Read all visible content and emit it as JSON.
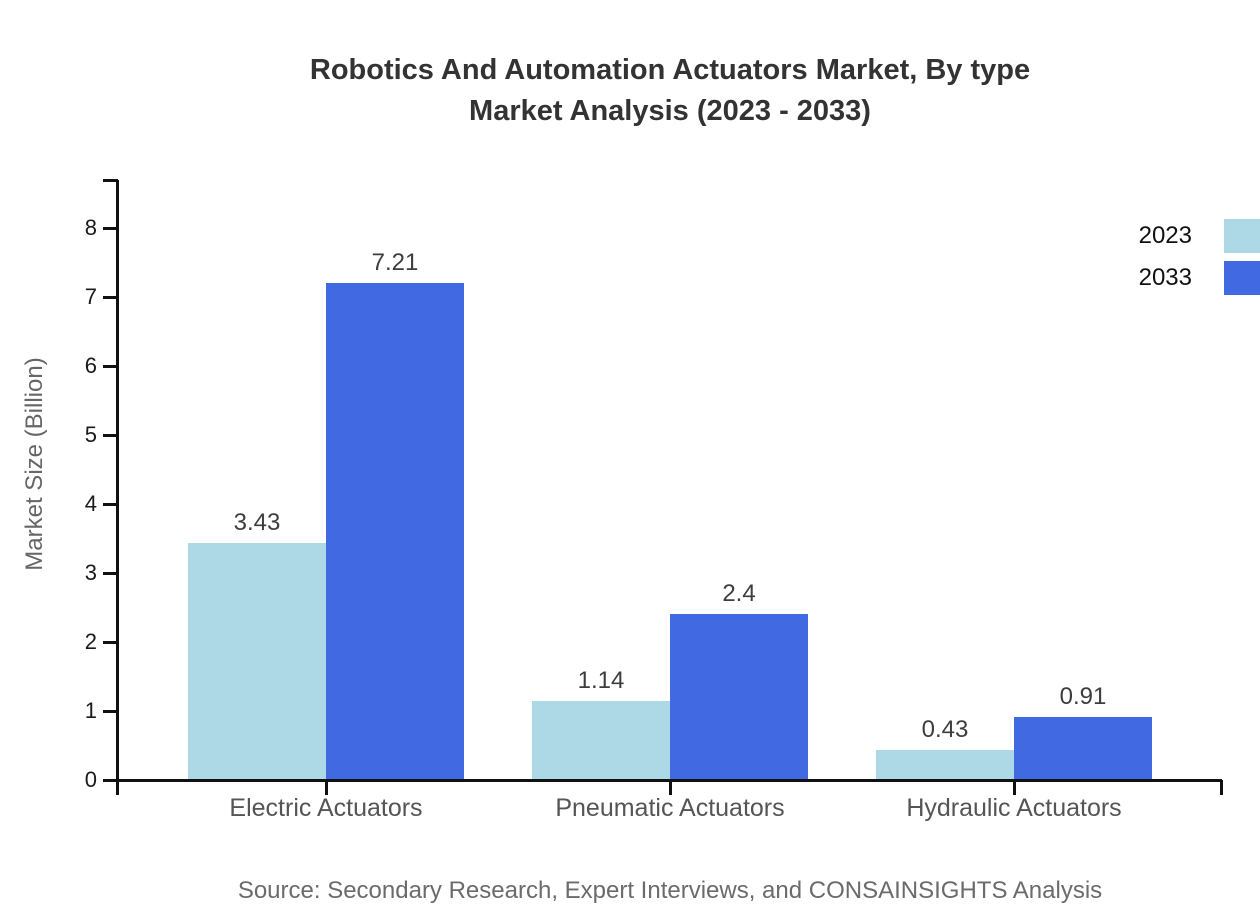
{
  "title": {
    "line1": "Robotics And Automation Actuators Market, By type",
    "line2": "Market Analysis (2023 - 2033)"
  },
  "y_axis_label": "Market Size (Billion)",
  "source_note": "Source: Secondary Research, Expert Interviews, and CONSAINSIGHTS Analysis",
  "colors": {
    "series_2023": "#ADD8E6",
    "series_2033": "#4169E1",
    "axis": "#111111",
    "title_text": "#333333",
    "category_text": "#555555",
    "source_text": "#6b6b6b"
  },
  "chart_data": {
    "type": "bar",
    "title": "Robotics And Automation Actuators Market, By type Market Analysis (2023 - 2033)",
    "categories": [
      "Electric Actuators",
      "Pneumatic Actuators",
      "Hydraulic Actuators"
    ],
    "series": [
      {
        "name": "2023",
        "color": "#ADD8E6",
        "values": [
          3.43,
          1.14,
          0.43
        ]
      },
      {
        "name": "2033",
        "color": "#4169E1",
        "values": [
          7.21,
          2.4,
          0.91
        ]
      }
    ],
    "xlabel": "",
    "ylabel": "Market Size (Billion)",
    "ylim": [
      0,
      8.7
    ],
    "yticks": [
      0,
      1,
      2,
      3,
      4,
      5,
      6,
      7,
      8
    ],
    "grid": false,
    "legend_position": "top-right",
    "value_labels_shown": true
  }
}
